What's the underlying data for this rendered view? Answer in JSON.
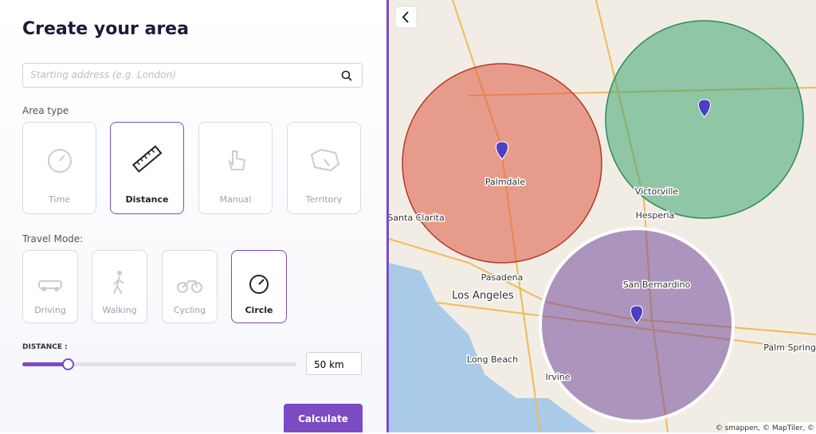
{
  "header": {
    "title": "Create your area"
  },
  "search": {
    "placeholder": "Starting address (e.g. London)"
  },
  "area_type": {
    "label": "Area type",
    "options": [
      "Time",
      "Distance",
      "Manual",
      "Territory"
    ],
    "selected": 1
  },
  "travel_mode": {
    "label": "Travel Mode:",
    "options": [
      "Driving",
      "Walking",
      "Cycling",
      "Circle"
    ],
    "selected": 3
  },
  "distance": {
    "label": "DISTANCE :",
    "value": "50 km"
  },
  "button": {
    "label": "Calculate"
  },
  "map": {
    "labels": [
      "Palmdale",
      "Santa Clarita",
      "Victorville",
      "Hesperia",
      "Pasadena",
      "Los Angeles",
      "San Bernardino",
      "Long Beach",
      "Irvine",
      "Palm Springs"
    ],
    "attribution": "© smappen, © MapTiler, ©"
  }
}
